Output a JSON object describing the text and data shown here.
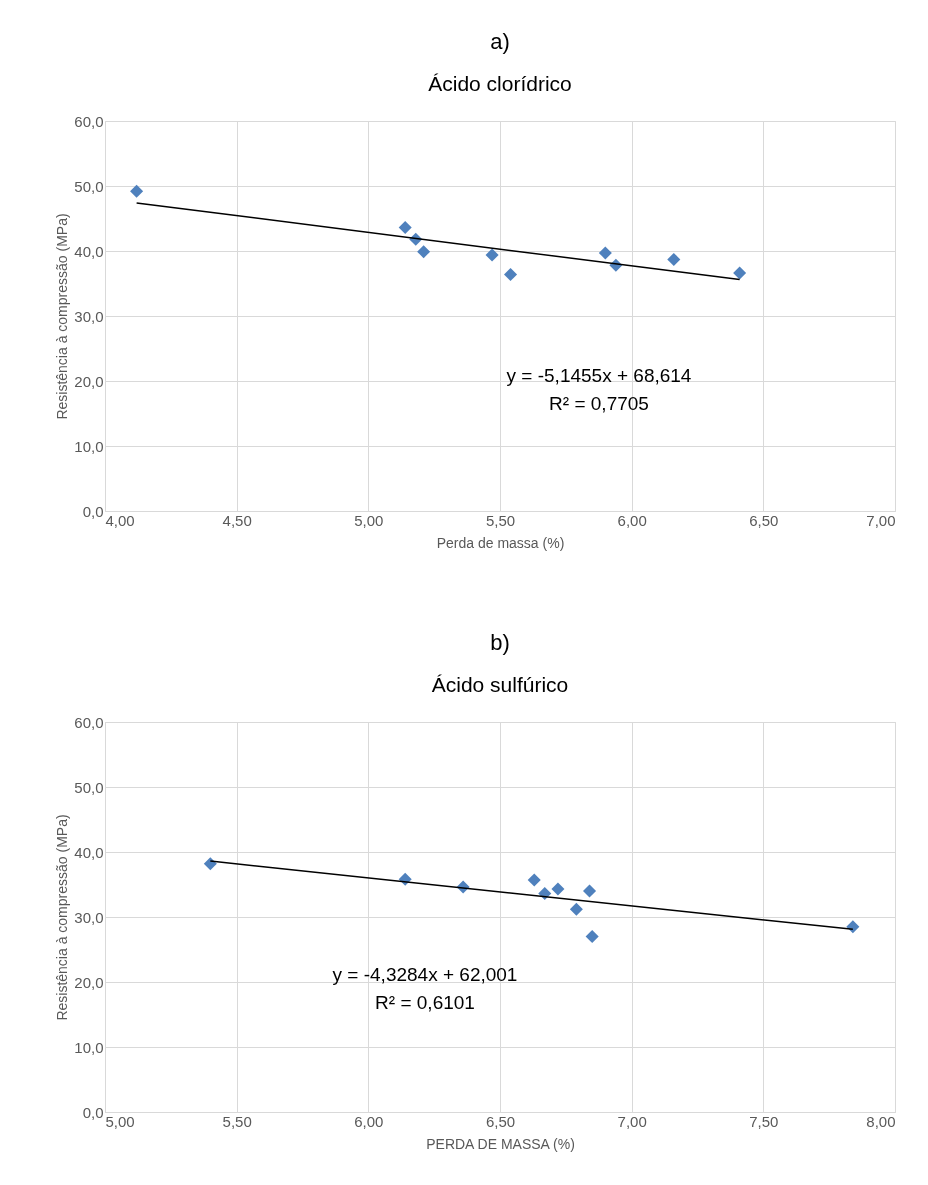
{
  "chart_data": [
    {
      "type": "scatter",
      "title": "a)",
      "subtitle": "Ácido clorídrico",
      "xlabel": "Perda de massa (%)",
      "ylabel": "Resistência à compressão (MPa)",
      "x": [
        4.12,
        5.14,
        5.18,
        5.21,
        5.47,
        5.54,
        5.9,
        5.94,
        6.16,
        6.41
      ],
      "series": [
        {
          "color": "#4f81bd",
          "marker": "diamond",
          "values": [
            49.2,
            43.6,
            41.8,
            39.9,
            39.4,
            36.4,
            39.7,
            37.8,
            38.7,
            36.6
          ]
        },
        {
          "type": "line",
          "color": "#000000",
          "line_style": "solid",
          "x": [
            4.12,
            6.41
          ],
          "values": [
            47.4,
            35.6
          ]
        }
      ],
      "xlim": [
        4,
        7
      ],
      "ylim": [
        0,
        60
      ],
      "xticks": [
        {
          "value": 4,
          "label": "4,00"
        },
        {
          "value": 4.5,
          "label": "4,50"
        },
        {
          "value": 5,
          "label": "5,00"
        },
        {
          "value": 5.5,
          "label": "5,50"
        },
        {
          "value": 6,
          "label": "6,00"
        },
        {
          "value": 6.5,
          "label": "6,50"
        },
        {
          "value": 7,
          "label": "7,00"
        }
      ],
      "yticks": [
        {
          "value": 0,
          "label": "0,0"
        },
        {
          "value": 10,
          "label": "10,0"
        },
        {
          "value": 20,
          "label": "20,0"
        },
        {
          "value": 30,
          "label": "30,0"
        },
        {
          "value": 40,
          "label": "40,0"
        },
        {
          "value": 50,
          "label": "50,0"
        },
        {
          "value": 60,
          "label": "60,0"
        }
      ],
      "grid": true,
      "annotations": [
        "y = -5,1455x + 68,614",
        "R² = 0,7705"
      ]
    },
    {
      "type": "scatter",
      "title": "b)",
      "subtitle": "Ácido sulfúrico",
      "xlabel": "PERDA DE MASSA (%)",
      "ylabel": "Resistência à compressão (MPa)",
      "x": [
        5.4,
        6.14,
        6.36,
        6.63,
        6.67,
        6.72,
        6.79,
        6.84,
        6.85,
        7.84
      ],
      "series": [
        {
          "color": "#4f81bd",
          "marker": "diamond",
          "values": [
            38.2,
            35.8,
            34.6,
            35.7,
            33.6,
            34.3,
            31.2,
            34.0,
            27.0,
            28.5
          ]
        },
        {
          "type": "line",
          "color": "#000000",
          "line_style": "solid",
          "x": [
            5.4,
            7.84
          ],
          "values": [
            38.6,
            28.1
          ]
        }
      ],
      "xlim": [
        5,
        8
      ],
      "ylim": [
        0,
        60
      ],
      "xticks": [
        {
          "value": 5,
          "label": "5,00"
        },
        {
          "value": 5.5,
          "label": "5,50"
        },
        {
          "value": 6,
          "label": "6,00"
        },
        {
          "value": 6.5,
          "label": "6,50"
        },
        {
          "value": 7,
          "label": "7,00"
        },
        {
          "value": 7.5,
          "label": "7,50"
        },
        {
          "value": 8,
          "label": "8,00"
        }
      ],
      "yticks": [
        {
          "value": 0,
          "label": "0,0"
        },
        {
          "value": 10,
          "label": "10,0"
        },
        {
          "value": 20,
          "label": "20,0"
        },
        {
          "value": 30,
          "label": "30,0"
        },
        {
          "value": 40,
          "label": "40,0"
        },
        {
          "value": 50,
          "label": "50,0"
        },
        {
          "value": 60,
          "label": "60,0"
        }
      ],
      "grid": true,
      "annotations": [
        "y = -4,3284x + 62,001",
        "R² = 0,6101"
      ]
    }
  ]
}
